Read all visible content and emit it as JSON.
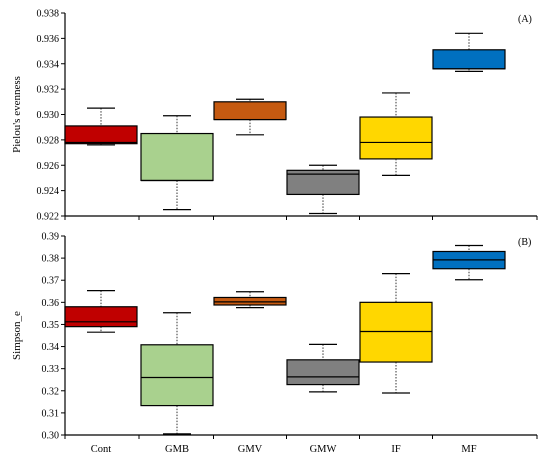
{
  "chart_data": [
    {
      "type": "box",
      "panel": "(A)",
      "ylabel": "Pielou's evenness",
      "ylim": [
        0.922,
        0.938
      ],
      "yticks": [
        "0.922",
        "0.924",
        "0.926",
        "0.928",
        "0.930",
        "0.932",
        "0.934",
        "0.936",
        "0.938"
      ],
      "categories": [
        "Cont",
        "GMB",
        "GMV",
        "GMW",
        "IF",
        "MF"
      ],
      "boxes": [
        {
          "min": 0.9276,
          "q1": 0.9277,
          "median": 0.9278,
          "q3": 0.9291,
          "max": 0.9305
        },
        {
          "min": 0.9225,
          "q1": 0.9248,
          "median": 0.9248,
          "q3": 0.9285,
          "max": 0.9299
        },
        {
          "min": 0.9284,
          "q1": 0.9296,
          "median": 0.9296,
          "q3": 0.931,
          "max": 0.9312
        },
        {
          "min": 0.9222,
          "q1": 0.9237,
          "median": 0.9253,
          "q3": 0.9256,
          "max": 0.926
        },
        {
          "min": 0.9252,
          "q1": 0.9265,
          "median": 0.9278,
          "q3": 0.9298,
          "max": 0.9317
        },
        {
          "min": 0.9334,
          "q1": 0.9336,
          "median": 0.9336,
          "q3": 0.9351,
          "max": 0.9364
        }
      ]
    },
    {
      "type": "box",
      "panel": "(B)",
      "ylabel": "Simpson_e",
      "ylim": [
        0.3,
        0.39
      ],
      "yticks": [
        "0.30",
        "0.31",
        "0.32",
        "0.33",
        "0.34",
        "0.35",
        "0.36",
        "0.37",
        "0.38",
        "0.39"
      ],
      "categories": [
        "Cont",
        "GMB",
        "GMV",
        "GMW",
        "IF",
        "MF"
      ],
      "boxes": [
        {
          "min": 0.3465,
          "q1": 0.349,
          "median": 0.3512,
          "q3": 0.358,
          "max": 0.3653
        },
        {
          "min": 0.3005,
          "q1": 0.3133,
          "median": 0.326,
          "q3": 0.3408,
          "max": 0.3553
        },
        {
          "min": 0.3576,
          "q1": 0.3588,
          "median": 0.3602,
          "q3": 0.3622,
          "max": 0.3648
        },
        {
          "min": 0.3195,
          "q1": 0.3228,
          "median": 0.3263,
          "q3": 0.334,
          "max": 0.341
        },
        {
          "min": 0.319,
          "q1": 0.333,
          "median": 0.3468,
          "q3": 0.36,
          "max": 0.373
        },
        {
          "min": 0.3702,
          "q1": 0.3752,
          "median": 0.3792,
          "q3": 0.383,
          "max": 0.3857
        }
      ]
    }
  ],
  "colors": {
    "Cont": "#c00000",
    "GMB": "#a9d18e",
    "GMV": "#c55a11",
    "GMW": "#808080",
    "IF": "#ffd700",
    "MF": "#0070c0"
  }
}
